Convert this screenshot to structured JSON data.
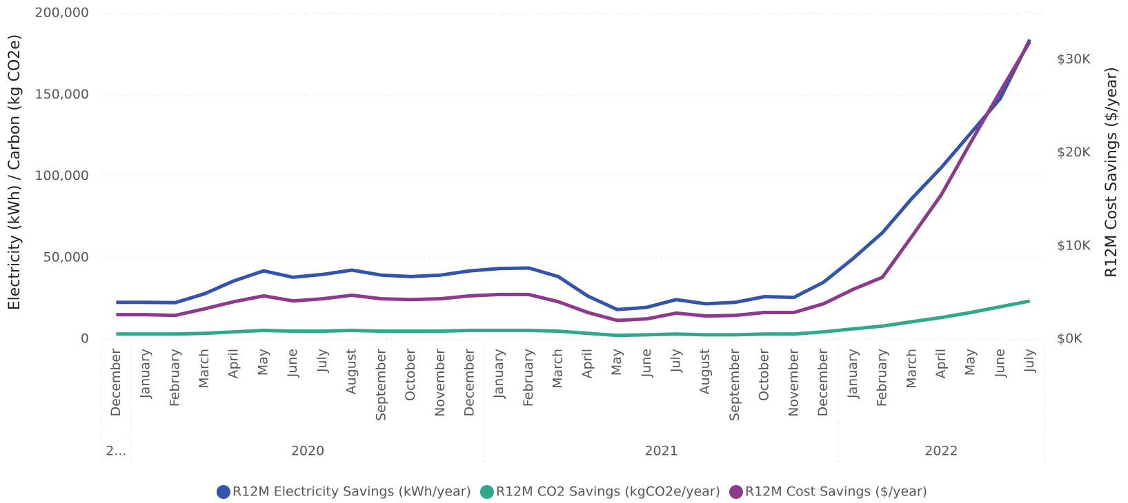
{
  "chart_data": {
    "type": "line",
    "categories": [
      "December",
      "January",
      "February",
      "March",
      "April",
      "May",
      "June",
      "July",
      "August",
      "September",
      "October",
      "November",
      "December",
      "January",
      "February",
      "March",
      "April",
      "May",
      "June",
      "July",
      "August",
      "September",
      "October",
      "November",
      "December",
      "January",
      "February",
      "March",
      "April",
      "May",
      "June",
      "July"
    ],
    "year_labels": [
      "2...",
      "2020",
      "2020",
      "2020",
      "2020",
      "2020",
      "2020",
      "2020",
      "2020",
      "2020",
      "2020",
      "2020",
      "2020",
      "2021",
      "2021",
      "2021",
      "2021",
      "2021",
      "2021",
      "2021",
      "2021",
      "2021",
      "2021",
      "2021",
      "2021",
      "2022",
      "2022",
      "2022",
      "2022",
      "2022",
      "2022",
      "2022"
    ],
    "y_label": "Electricity (kWh) / Carbon (kg CO2e)",
    "y2_label": "R12M Cost Savings ($/year)",
    "ylim": [
      0,
      200000
    ],
    "yticks": [
      0,
      {
        "value": 50000,
        "label": "50,000"
      },
      {
        "value": 100000,
        "label": "100,000"
      },
      {
        "value": 150000,
        "label": "150,000"
      },
      {
        "value": 200000,
        "label": "200,000"
      }
    ],
    "y2lim": [
      0,
      35000
    ],
    "y2ticks": [
      {
        "value": 0,
        "label": "$0K"
      },
      {
        "value": 10000,
        "label": "$10K"
      },
      {
        "value": 20000,
        "label": "$20K"
      },
      {
        "value": 30000,
        "label": "$30K"
      }
    ],
    "grid": true,
    "legend": "bottom",
    "series": [
      {
        "name": "R12M Electricity Savings (kWh/year)",
        "color": "#3353ad",
        "values": [
          22500,
          22500,
          22300,
          27800,
          35700,
          41800,
          37900,
          39600,
          42300,
          39200,
          38300,
          39200,
          41800,
          43200,
          43600,
          38300,
          26400,
          18100,
          19400,
          24200,
          21600,
          22500,
          26000,
          25600,
          34800,
          49300,
          65200,
          86300,
          105300,
          126400,
          147600,
          183700
        ]
      },
      {
        "name": "R12M CO2 Savings (kgCO2e/year)",
        "color": "#2fa88c",
        "values": [
          3100,
          3100,
          3100,
          3500,
          4400,
          5300,
          4800,
          4800,
          5300,
          4800,
          4800,
          4800,
          5300,
          5300,
          5300,
          4800,
          3500,
          2200,
          2600,
          3100,
          2600,
          2600,
          3100,
          3100,
          4400,
          6200,
          7900,
          10600,
          13200,
          16300,
          19800,
          23300
        ]
      },
      {
        "name": "R12M Cost Savings ($/year)",
        "color": "#8b3a8e",
        "axis": "y2",
        "values": [
          2620,
          2620,
          2540,
          3240,
          4010,
          4630,
          4090,
          4320,
          4700,
          4320,
          4240,
          4320,
          4630,
          4780,
          4780,
          4010,
          2850,
          2000,
          2160,
          2780,
          2470,
          2540,
          2850,
          2850,
          3780,
          5320,
          6630,
          11030,
          15500,
          21130,
          26600,
          31920
        ]
      }
    ]
  }
}
